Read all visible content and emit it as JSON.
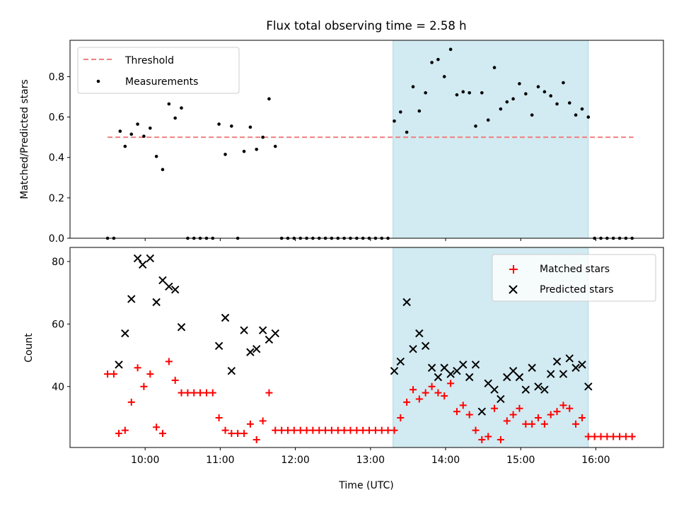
{
  "title": "Flux total observing time = 2.58 h",
  "shade": {
    "start": 13.3,
    "end": 15.9,
    "color": "#add8e6"
  },
  "chart_data": [
    {
      "type": "scatter",
      "ylabel": "Matched/Predicted stars",
      "xlim": [
        9.0,
        16.9
      ],
      "ylim": [
        0,
        0.98
      ],
      "yticks": [
        "0.0",
        "0.2",
        "0.4",
        "0.6",
        "0.8"
      ],
      "legend": {
        "position": "top-left",
        "threshold_label": "Threshold",
        "measure_label": "Measurements"
      },
      "threshold": {
        "value": 0.5,
        "x_start": 9.5,
        "x_end": 16.5,
        "color": "#f08080"
      },
      "measurements": {
        "color": "#000000",
        "x": [
          9.5,
          9.583,
          9.667,
          9.733,
          9.817,
          9.9,
          9.983,
          10.067,
          10.15,
          10.233,
          10.317,
          10.4,
          10.483,
          10.567,
          10.65,
          10.733,
          10.817,
          10.9,
          10.983,
          11.067,
          11.15,
          11.233,
          11.317,
          11.4,
          11.483,
          11.567,
          11.65,
          11.733,
          11.817,
          11.9,
          11.983,
          12.067,
          12.15,
          12.233,
          12.317,
          12.4,
          12.483,
          12.567,
          12.65,
          12.733,
          12.817,
          12.9,
          12.983,
          13.067,
          13.15,
          13.233,
          13.317,
          13.4,
          13.483,
          13.567,
          13.65,
          13.733,
          13.817,
          13.9,
          13.983,
          14.067,
          14.15,
          14.233,
          14.317,
          14.4,
          14.483,
          14.567,
          14.65,
          14.733,
          14.817,
          14.9,
          14.983,
          15.067,
          15.15,
          15.233,
          15.317,
          15.4,
          15.483,
          15.567,
          15.65,
          15.733,
          15.817,
          15.9,
          15.983,
          16.067,
          16.15,
          16.233,
          16.317,
          16.4,
          16.483
        ],
        "y": [
          0,
          0,
          0.53,
          0.455,
          0.515,
          0.565,
          0.505,
          0.545,
          0.405,
          0.34,
          0.665,
          0.595,
          0.645,
          0,
          0,
          0,
          0,
          0,
          0.565,
          0.415,
          0.555,
          0,
          0.43,
          0.55,
          0.44,
          0.5,
          0.69,
          0.455,
          0,
          0,
          0,
          0,
          0,
          0,
          0,
          0,
          0,
          0,
          0,
          0,
          0,
          0,
          0,
          0,
          0,
          0,
          0.58,
          0.625,
          0.525,
          0.75,
          0.63,
          0.72,
          0.87,
          0.885,
          0.8,
          0.935,
          0.71,
          0.725,
          0.72,
          0.555,
          0.72,
          0.585,
          0.845,
          0.64,
          0.675,
          0.69,
          0.765,
          0.715,
          0.61,
          0.75,
          0.725,
          0.705,
          0.665,
          0.77,
          0.67,
          0.61,
          0.64,
          0.6,
          0,
          0,
          0,
          0,
          0,
          0,
          0
        ]
      }
    },
    {
      "type": "scatter",
      "xlabel": "Time (UTC)",
      "ylabel": "Count",
      "xlim": [
        9.0,
        16.9
      ],
      "ylim": [
        20.5,
        84.5
      ],
      "yticks": [
        "40",
        "60",
        "80"
      ],
      "xticks": [
        "10:00",
        "11:00",
        "12:00",
        "13:00",
        "14:00",
        "15:00",
        "16:00"
      ],
      "legend": {
        "position": "top-right",
        "matched_label": "Matched stars",
        "predicted_label": "Predicted stars"
      },
      "matched": {
        "color": "#ff0000",
        "x": [
          9.5,
          9.583,
          9.65,
          9.733,
          9.817,
          9.9,
          9.983,
          10.067,
          10.15,
          10.233,
          10.317,
          10.4,
          10.483,
          10.567,
          10.65,
          10.733,
          10.817,
          10.9,
          10.983,
          11.067,
          11.15,
          11.233,
          11.317,
          11.4,
          11.483,
          11.567,
          11.65,
          11.733,
          11.817,
          11.9,
          11.983,
          12.067,
          12.15,
          12.233,
          12.317,
          12.4,
          12.483,
          12.567,
          12.65,
          12.733,
          12.817,
          12.9,
          12.983,
          13.067,
          13.15,
          13.233,
          13.317,
          13.4,
          13.483,
          13.567,
          13.65,
          13.733,
          13.817,
          13.9,
          13.983,
          14.067,
          14.15,
          14.233,
          14.317,
          14.4,
          14.483,
          14.567,
          14.65,
          14.733,
          14.817,
          14.9,
          14.983,
          15.067,
          15.15,
          15.233,
          15.317,
          15.4,
          15.483,
          15.567,
          15.65,
          15.733,
          15.817,
          15.9,
          15.983,
          16.067,
          16.15,
          16.233,
          16.317,
          16.4,
          16.483
        ],
        "y": [
          44,
          44,
          25,
          26,
          35,
          46,
          40,
          44,
          27,
          25,
          48,
          42,
          38,
          38,
          38,
          38,
          38,
          38,
          30,
          26,
          25,
          25,
          25,
          28,
          23,
          29,
          38,
          26,
          26,
          26,
          26,
          26,
          26,
          26,
          26,
          26,
          26,
          26,
          26,
          26,
          26,
          26,
          26,
          26,
          26,
          26,
          26,
          30,
          35,
          39,
          36,
          38,
          40,
          38,
          37,
          41,
          32,
          34,
          31,
          26,
          23,
          24,
          33,
          23,
          29,
          31,
          33,
          28,
          28,
          30,
          28,
          31,
          32,
          34,
          33,
          28,
          30,
          24,
          24,
          24,
          24,
          24,
          24,
          24,
          24
        ]
      },
      "predicted": {
        "color": "#000000",
        "x": [
          9.65,
          9.733,
          9.817,
          9.9,
          9.967,
          10.067,
          10.15,
          10.233,
          10.317,
          10.4,
          10.483,
          10.983,
          11.067,
          11.15,
          11.317,
          11.4,
          11.483,
          11.567,
          11.65,
          11.733,
          13.317,
          13.4,
          13.483,
          13.567,
          13.65,
          13.733,
          13.817,
          13.9,
          13.983,
          14.067,
          14.15,
          14.233,
          14.317,
          14.4,
          14.483,
          14.567,
          14.65,
          14.733,
          14.817,
          14.9,
          14.983,
          15.067,
          15.15,
          15.233,
          15.317,
          15.4,
          15.483,
          15.567,
          15.65,
          15.733,
          15.817,
          15.9
        ],
        "y": [
          47,
          57,
          68,
          81,
          79,
          81,
          67,
          74,
          72,
          71,
          59,
          53,
          62,
          45,
          58,
          51,
          52,
          58,
          55,
          57,
          45,
          48,
          67,
          52,
          57,
          53,
          46,
          43,
          46,
          44,
          45,
          47,
          43,
          47,
          32,
          41,
          39,
          36,
          43,
          45,
          43,
          39,
          46,
          40,
          39,
          44,
          48,
          44,
          49,
          46,
          47,
          40
        ]
      }
    }
  ]
}
